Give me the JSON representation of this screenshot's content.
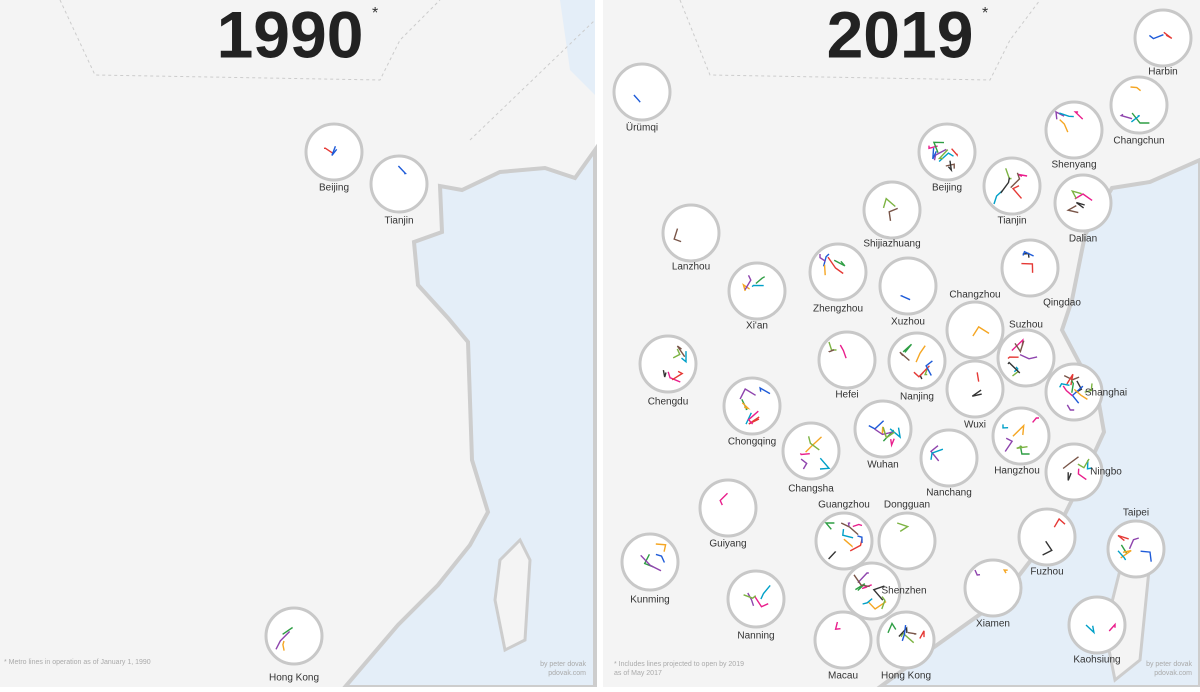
{
  "panels": [
    {
      "title": "1990",
      "asterisk": "*",
      "cities": [
        "Beijing",
        "Tianjin",
        "Hong Kong"
      ],
      "footnote": [
        "* Metro lines in operation as of January 1, 1990"
      ],
      "credit": [
        "by peter dovak",
        "pdovak.com"
      ]
    },
    {
      "title": "2019",
      "asterisk": "*",
      "cities": [
        "Harbin",
        "Ürümqi",
        "Changchun",
        "Shenyang",
        "Beijing",
        "Tianjin",
        "Dalian",
        "Shijiazhuang",
        "Lanzhou",
        "Qingdao",
        "Zhengzhou",
        "Xuzhou",
        "Xi'an",
        "Changzhou",
        "Suzhou",
        "Chengdu",
        "Hefei",
        "Nanjing",
        "Shanghai",
        "Wuxi",
        "Chongqing",
        "Wuhan",
        "Hangzhou",
        "Changsha",
        "Nanchang",
        "Ningbo",
        "Guiyang",
        "Dongguan",
        "Guangzhou",
        "Fuzhou",
        "Taipei",
        "Kunming",
        "Shenzhen",
        "Xiamen",
        "Nanning",
        "Kaohsiung",
        "Macau",
        "Hong Kong"
      ],
      "footnote": [
        "* Includes lines projected to open by 2019",
        "as of May 2017"
      ],
      "credit": [
        "by peter dovak",
        "pdovak.com"
      ]
    }
  ]
}
